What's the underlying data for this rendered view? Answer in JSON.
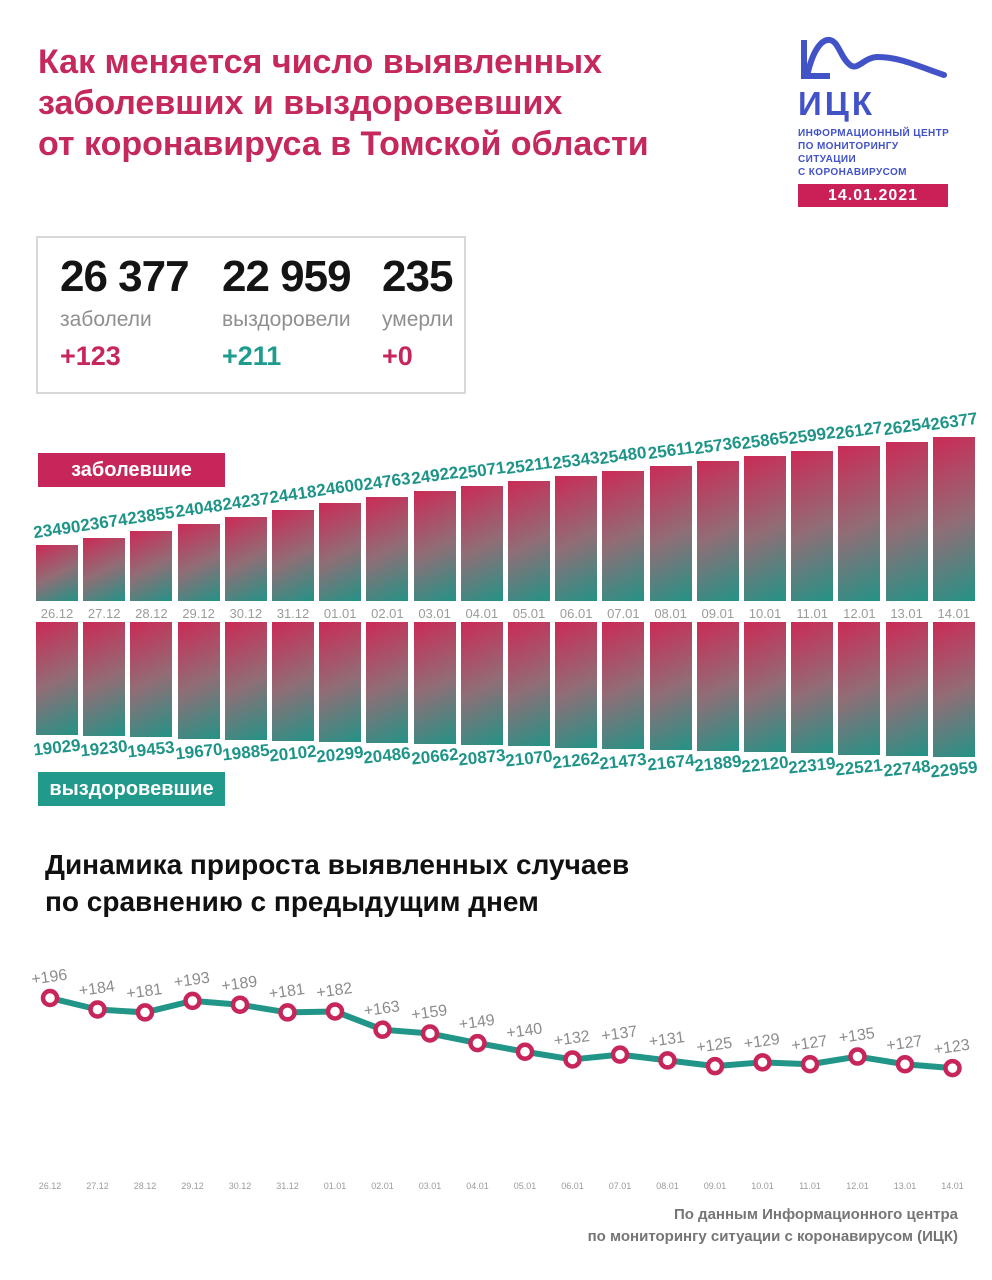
{
  "title": {
    "lines": [
      "Как меняется число выявленных",
      "заболевших и выздоровевших",
      "от коронавируса в Томской области"
    ]
  },
  "logo": {
    "org_abbr": "ИЦК",
    "org_lines": [
      "ИНФОРМАЦИОННЫЙ ЦЕНТР",
      "ПО МОНИТОРИНГУ СИТУАЦИИ",
      "С КОРОНАВИРУСОМ"
    ],
    "date": "14.01.2021"
  },
  "stats": {
    "cards": [
      {
        "value": "26 377",
        "label": "заболели",
        "delta": "+123",
        "delta_color": "#c7265a"
      },
      {
        "value": "22 959",
        "label": "выздоровели",
        "delta": "+211",
        "delta_color": "#1f9c8e"
      },
      {
        "value": "235",
        "label": "умерли",
        "delta": "+0",
        "delta_color": "#c7265a"
      }
    ]
  },
  "chart_data": [
    {
      "type": "bar",
      "title": "заболевшие",
      "orientation": "up",
      "categories": [
        "26.12",
        "27.12",
        "28.12",
        "29.12",
        "30.12",
        "31.12",
        "01.01",
        "02.01",
        "03.01",
        "04.01",
        "05.01",
        "06.01",
        "07.01",
        "08.01",
        "09.01",
        "10.01",
        "11.01",
        "12.01",
        "13.01",
        "14.01"
      ],
      "values": [
        23490,
        23674,
        23855,
        24048,
        24237,
        24418,
        24600,
        24763,
        24922,
        25071,
        25211,
        25343,
        25480,
        25611,
        25736,
        25865,
        25992,
        26127,
        26254,
        26377
      ],
      "bar_gradient": [
        "#cb2a56",
        "#239386"
      ],
      "value_label_color": "#1e9488",
      "ylim": [
        23294,
        26500
      ]
    },
    {
      "type": "bar",
      "title": "выздоровевшие",
      "orientation": "down",
      "categories": [
        "26.12",
        "27.12",
        "28.12",
        "29.12",
        "30.12",
        "31.12",
        "01.01",
        "02.01",
        "03.01",
        "04.01",
        "05.01",
        "06.01",
        "07.01",
        "08.01",
        "09.01",
        "10.01",
        "11.01",
        "12.01",
        "13.01",
        "14.01"
      ],
      "values": [
        19029,
        19230,
        19453,
        19670,
        19885,
        20102,
        20299,
        20486,
        20662,
        20873,
        21070,
        21262,
        21473,
        21674,
        21889,
        22120,
        22319,
        22521,
        22748,
        22959
      ],
      "bar_gradient": [
        "#cb2a56",
        "#239386"
      ],
      "value_label_color": "#1e9488"
    },
    {
      "type": "line",
      "title": "Динамика прироста выявленных случаев по сравнению с предыдущим днем",
      "title_lines": [
        "Динамика прироста выявленных случаев",
        "по сравнению с предыдущим днем"
      ],
      "categories": [
        "26.12",
        "27.12",
        "28.12",
        "29.12",
        "30.12",
        "31.12",
        "01.01",
        "02.01",
        "03.01",
        "04.01",
        "05.01",
        "06.01",
        "07.01",
        "08.01",
        "09.01",
        "10.01",
        "11.01",
        "12.01",
        "13.01",
        "14.01"
      ],
      "values": [
        196,
        184,
        181,
        193,
        189,
        181,
        182,
        163,
        159,
        149,
        140,
        132,
        137,
        131,
        125,
        129,
        127,
        135,
        127,
        123
      ],
      "value_labels": [
        "+196",
        "+184",
        "+181",
        "+193",
        "+189",
        "+181",
        "+182",
        "+163",
        "+159",
        "+149",
        "+140",
        "+132",
        "+137",
        "+131",
        "+125",
        "+129",
        "+127",
        "+135",
        "+127",
        "+123"
      ],
      "line_color": "#219688",
      "marker_color": "#c7265a",
      "grid": false,
      "legend": false,
      "ylim": [
        110,
        210
      ]
    }
  ],
  "footer": {
    "lines": [
      "По данным Информационного центра",
      "по мониторингу ситуации с коронавирусом (ИЦК)"
    ]
  },
  "colors": {
    "crimson": "#c7265a",
    "teal": "#21998b",
    "blue": "#4252c7",
    "gray_text": "#8f8f8f",
    "dark_text": "#141414",
    "background": "#ffffff"
  }
}
